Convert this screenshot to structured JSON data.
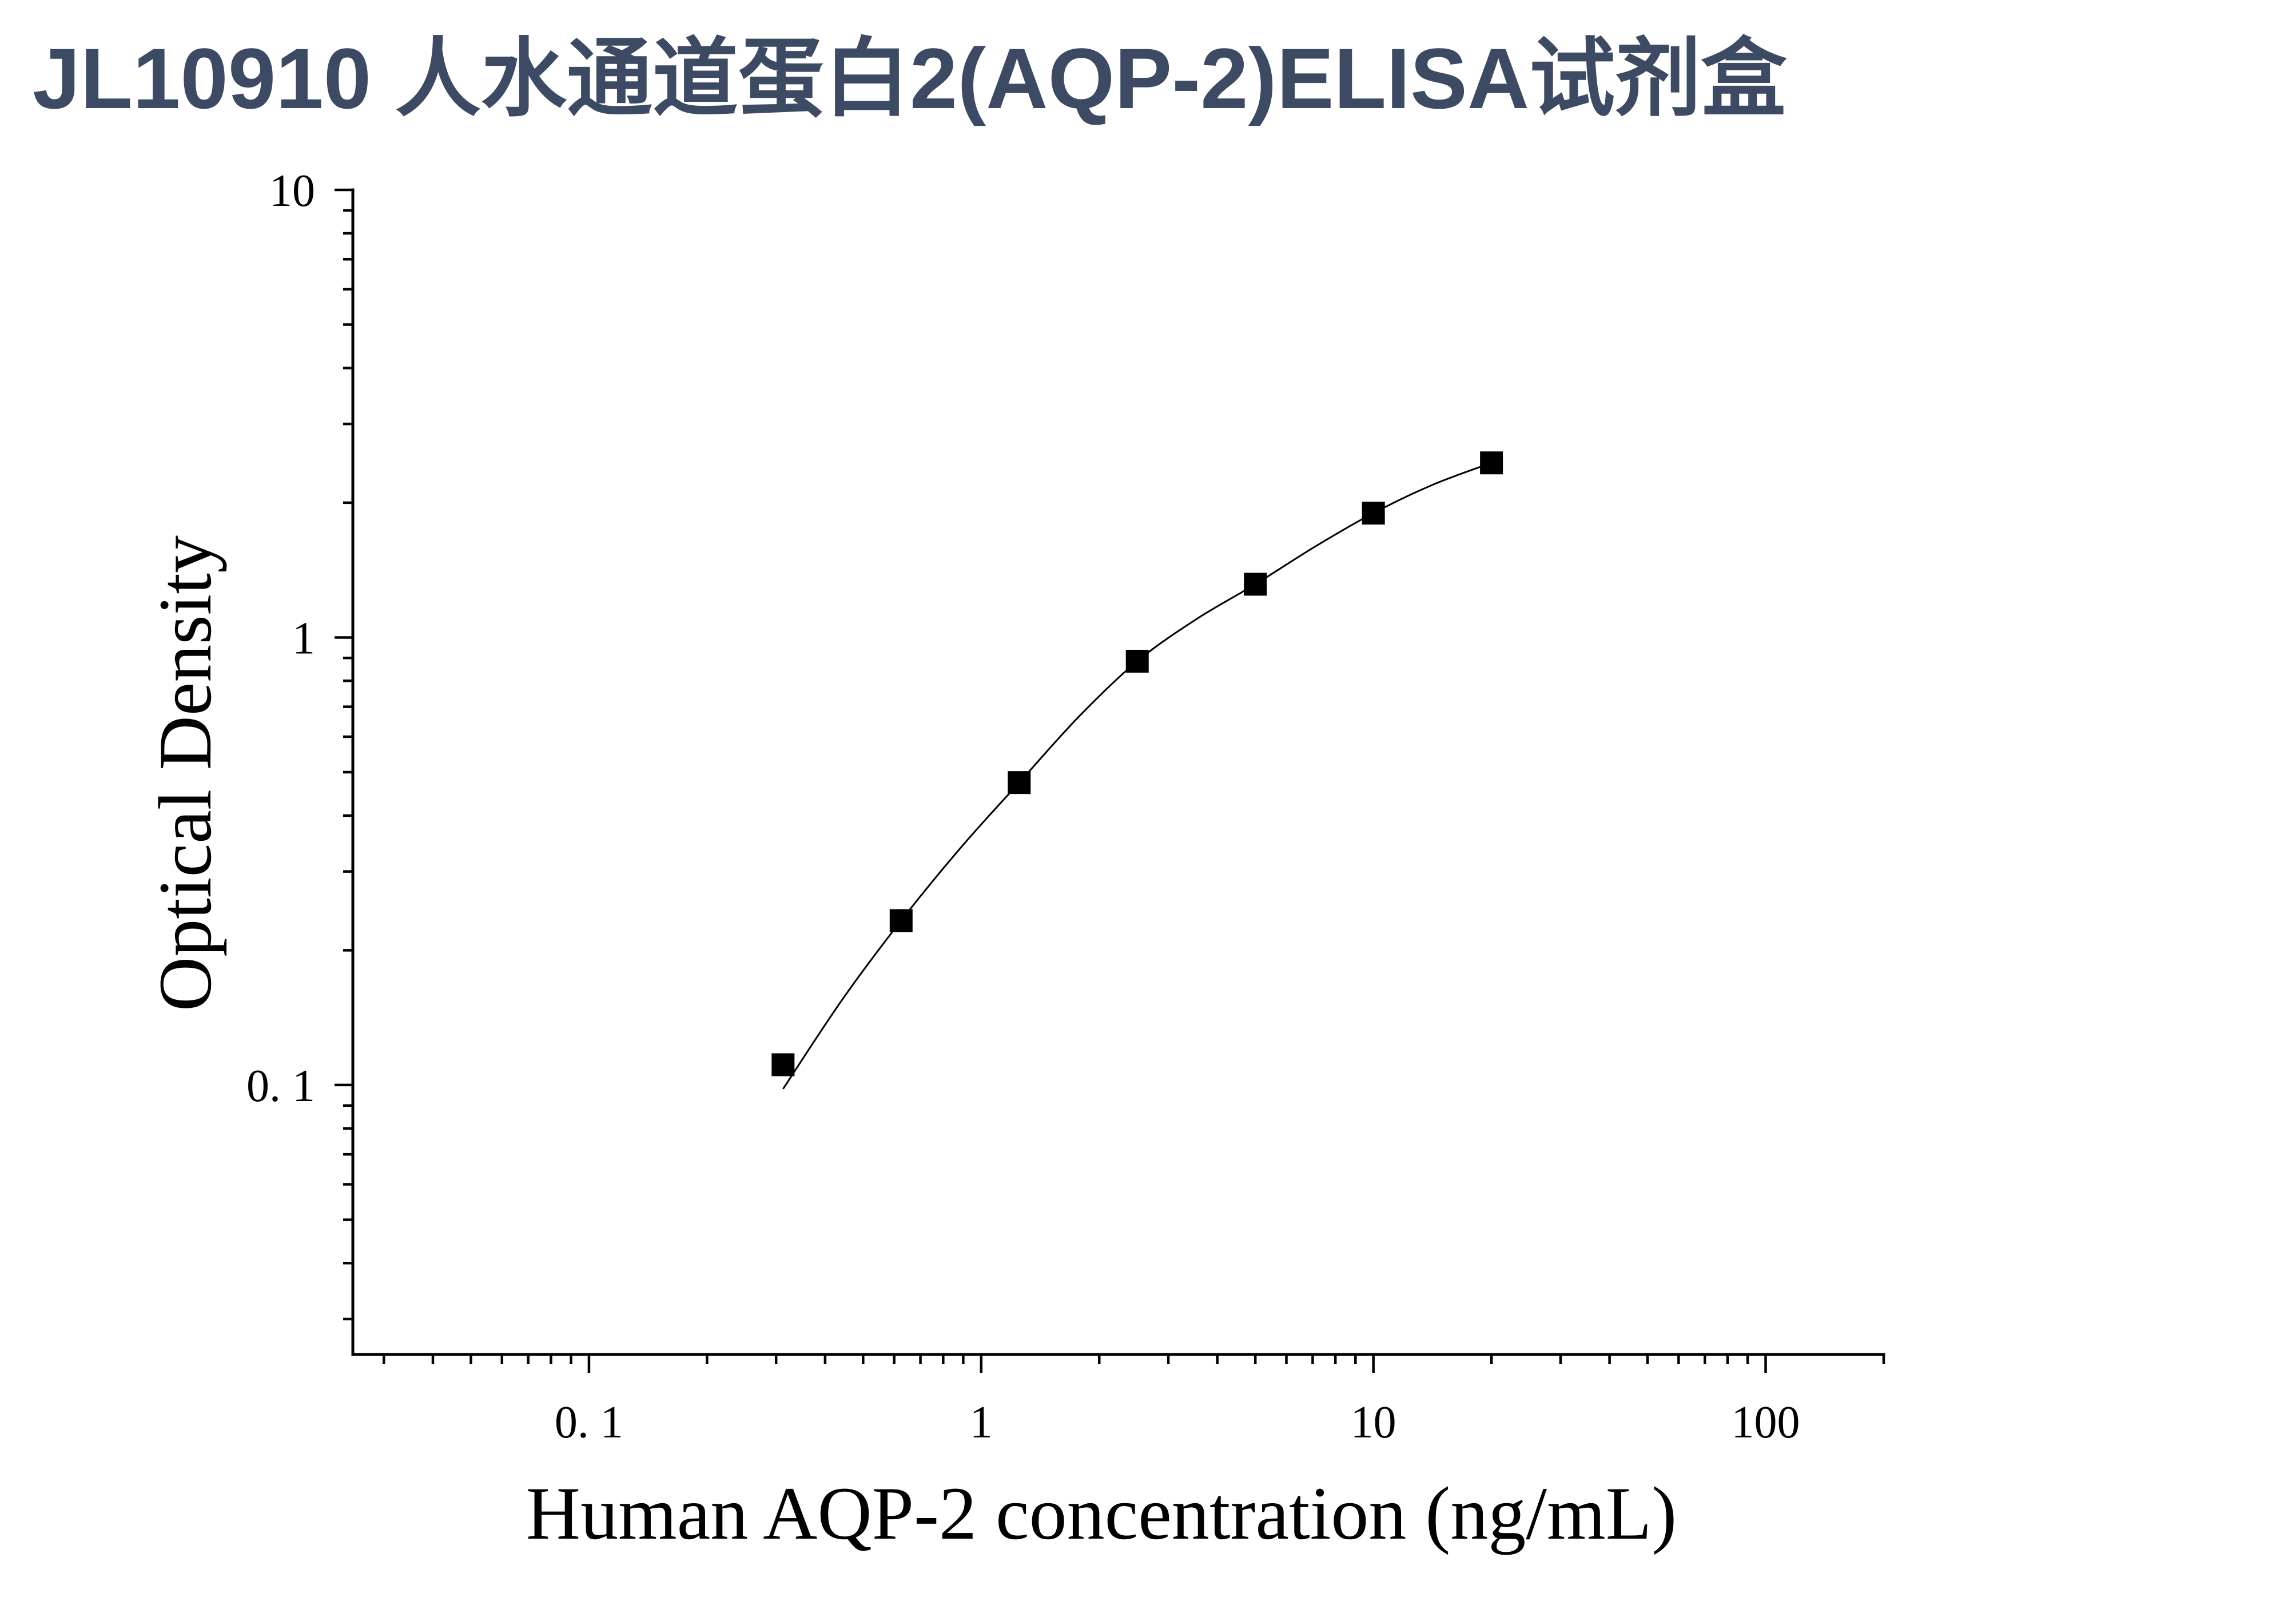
{
  "page_title": "JL10910 人水通道蛋白2(AQP-2)ELISA试剂盒",
  "colors": {
    "title": "#3d4a64",
    "axes": "#000000",
    "marks": "#000000",
    "background": "#ffffff"
  },
  "chart_data": {
    "type": "scatter",
    "xlabel": "Human AQP-2 concentration (ng/mL)",
    "ylabel": "Optical Density",
    "xscale": "log",
    "yscale": "log",
    "xlim": [
      0.025,
      200
    ],
    "ylim": [
      0.025,
      10
    ],
    "grid": false,
    "legend": "none",
    "x_ticks": [
      {
        "value": 0.1,
        "label": "0. 1"
      },
      {
        "value": 1,
        "label": "1"
      },
      {
        "value": 10,
        "label": "10"
      },
      {
        "value": 100,
        "label": "100"
      }
    ],
    "y_ticks": [
      {
        "value": 0.1,
        "label": "0. 1"
      },
      {
        "value": 1,
        "label": "1"
      },
      {
        "value": 10,
        "label": "10"
      }
    ],
    "series": [
      {
        "marker": "square",
        "x": [
          0.3125,
          0.625,
          1.25,
          2.5,
          5,
          10,
          20
        ],
        "y": [
          0.111,
          0.233,
          0.474,
          0.885,
          1.315,
          1.896,
          2.455
        ]
      }
    ],
    "fit_curve": {
      "x": [
        0.3125,
        0.442,
        0.625,
        0.884,
        1.25,
        1.77,
        2.5,
        3.54,
        5,
        7.07,
        10,
        14.1,
        20
      ],
      "y": [
        0.098,
        0.155,
        0.233,
        0.338,
        0.474,
        0.664,
        0.885,
        1.099,
        1.315,
        1.592,
        1.896,
        2.19,
        2.455
      ]
    }
  }
}
